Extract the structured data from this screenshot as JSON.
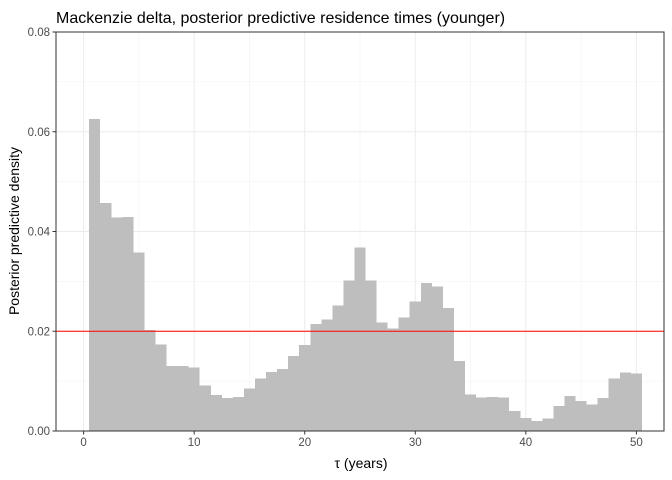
{
  "chart_data": {
    "type": "bar",
    "title": "Mackenzie delta, posterior predictive residence times (younger)",
    "xlabel": "τ (years)",
    "ylabel": "Posterior predictive density",
    "xlim": [
      -2.5,
      52.5
    ],
    "ylim": [
      0,
      0.08
    ],
    "x_ticks": [
      0,
      10,
      20,
      30,
      40,
      50
    ],
    "x_tick_labels": [
      "0",
      "10",
      "20",
      "30",
      "40",
      "50"
    ],
    "y_ticks": [
      0,
      0.02,
      0.04,
      0.06,
      0.08
    ],
    "y_tick_labels": [
      "0.00",
      "0.02",
      "0.04",
      "0.06",
      "0.08"
    ],
    "bin_width": 1,
    "bin_centers": [
      1,
      2,
      3,
      4,
      5,
      6,
      7,
      8,
      9,
      10,
      11,
      12,
      13,
      14,
      15,
      16,
      17,
      18,
      19,
      20,
      21,
      22,
      23,
      24,
      25,
      26,
      27,
      28,
      29,
      30,
      31,
      32,
      33,
      34,
      35,
      36,
      37,
      38,
      39,
      40,
      41,
      42,
      43,
      44,
      45,
      46,
      47,
      48,
      49,
      50
    ],
    "values": [
      0.0626,
      0.0457,
      0.0428,
      0.0429,
      0.0358,
      0.0203,
      0.0173,
      0.013,
      0.013,
      0.0127,
      0.0091,
      0.0072,
      0.0066,
      0.0068,
      0.0085,
      0.0105,
      0.0118,
      0.0124,
      0.015,
      0.0172,
      0.0215,
      0.0224,
      0.0252,
      0.0302,
      0.0368,
      0.0302,
      0.0218,
      0.0206,
      0.0228,
      0.026,
      0.0297,
      0.029,
      0.0247,
      0.014,
      0.0073,
      0.0067,
      0.0068,
      0.0067,
      0.004,
      0.0026,
      0.002,
      0.0025,
      0.005,
      0.007,
      0.006,
      0.0053,
      0.0066,
      0.0105,
      0.0117,
      0.0115
    ],
    "reference_line": {
      "y": 0.02,
      "color": "#ff0000"
    },
    "bar_color": "#bebebe",
    "grid": true,
    "panel_border": true
  }
}
